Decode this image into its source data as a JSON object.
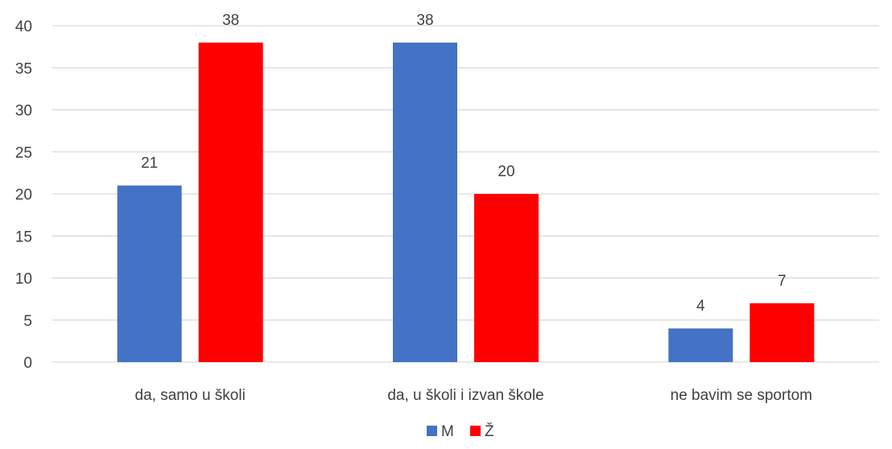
{
  "chart_data": {
    "type": "bar",
    "categories": [
      "da, samo u školi",
      "da, u školi i izvan škole",
      "ne bavim se sportom"
    ],
    "series": [
      {
        "name": "M",
        "values": [
          21,
          38,
          4
        ],
        "color": "#4472C4"
      },
      {
        "name": "Ž",
        "values": [
          38,
          20,
          7
        ],
        "color": "#FF0000"
      }
    ],
    "yticks": [
      0,
      5,
      10,
      15,
      20,
      25,
      30,
      35,
      40
    ],
    "ylim": [
      0,
      40
    ],
    "grid": true,
    "data_labels": true,
    "legend": "bottom-center",
    "gridline_color": "#D9D9D9"
  }
}
